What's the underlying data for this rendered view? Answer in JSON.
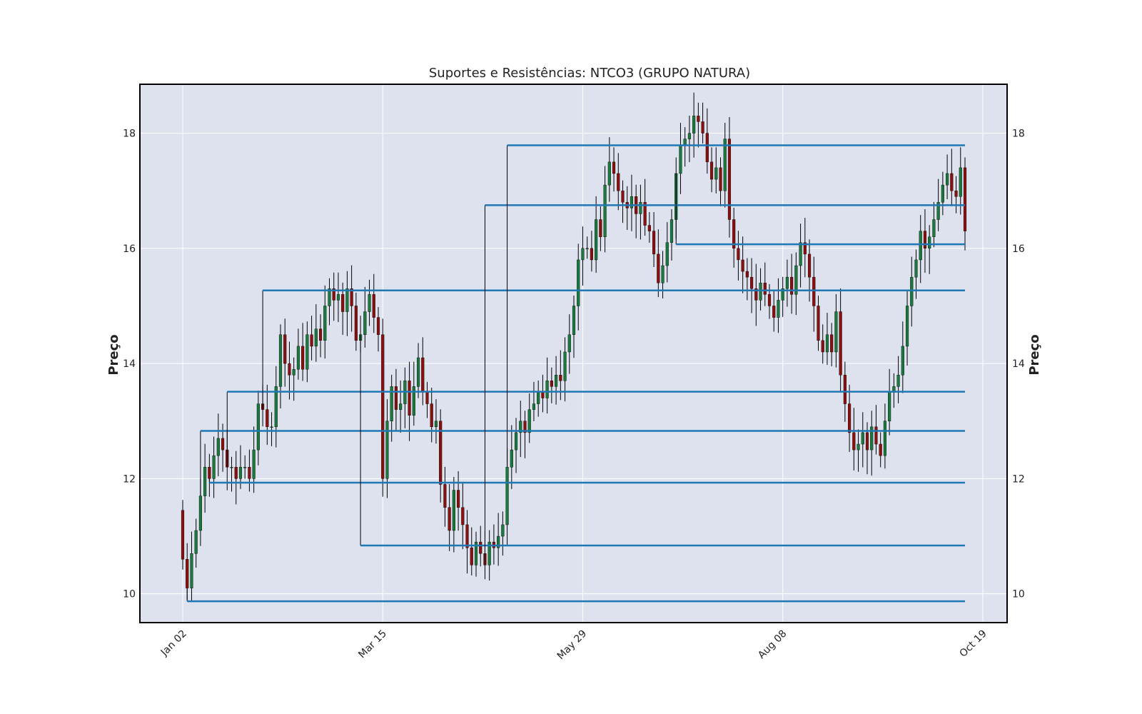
{
  "chart_data": {
    "type": "candlestick",
    "title": "Suportes e Resistências: NTCO3 (GRUPO NATURA)",
    "ylabel": "Preço",
    "ylabel_right": "Preço",
    "ylim": [
      9.5,
      18.85
    ],
    "yticks": [
      10,
      12,
      14,
      16,
      18
    ],
    "xticks": [
      "Jan 02",
      "Mar 15",
      "May 29",
      "Aug 08",
      "Oct 19"
    ],
    "grid": true,
    "colors": {
      "up": "#1a7a3e",
      "down": "#8b0f0f",
      "wick": "#000000",
      "level": "#1f77b4",
      "plot_bg": "#dde2ee"
    },
    "closes": [
      10.6,
      10.1,
      10.7,
      11.1,
      11.7,
      12.2,
      12.0,
      12.4,
      12.7,
      12.5,
      12.2,
      12.2,
      12.0,
      12.2,
      12.2,
      12.0,
      12.5,
      13.3,
      13.2,
      12.9,
      12.9,
      13.6,
      14.5,
      14.0,
      13.8,
      13.9,
      14.3,
      13.9,
      14.5,
      14.3,
      14.6,
      14.4,
      15.0,
      15.3,
      15.1,
      15.2,
      14.9,
      15.3,
      15.0,
      14.4,
      14.5,
      14.9,
      15.2,
      14.8,
      14.5,
      12.0,
      13.0,
      13.6,
      13.2,
      13.3,
      13.7,
      13.1,
      13.6,
      14.1,
      13.5,
      13.3,
      12.9,
      13.0,
      11.9,
      11.5,
      11.1,
      11.8,
      11.5,
      11.2,
      10.8,
      10.5,
      10.9,
      10.7,
      10.5,
      10.9,
      10.8,
      11.0,
      11.2,
      12.2,
      12.5,
      12.8,
      13.0,
      12.8,
      13.2,
      13.3,
      13.5,
      13.4,
      13.7,
      13.6,
      13.8,
      13.7,
      14.2,
      14.5,
      15.0,
      15.8,
      16.0,
      16.0,
      15.8,
      16.5,
      16.2,
      17.1,
      17.5,
      17.3,
      17.0,
      16.8,
      16.7,
      16.9,
      16.6,
      16.8,
      16.4,
      16.3,
      15.9,
      15.4,
      15.7,
      16.1,
      16.5,
      17.3,
      17.8,
      17.9,
      18.0,
      18.3,
      18.2,
      18.0,
      17.5,
      17.2,
      17.4,
      17.0,
      17.9,
      16.5,
      16.0,
      15.8,
      15.6,
      15.5,
      15.3,
      15.1,
      15.4,
      15.2,
      15.0,
      14.8,
      15.1,
      15.3,
      15.5,
      15.2,
      15.7,
      16.1,
      15.9,
      15.5,
      15.0,
      14.4,
      14.2,
      14.5,
      14.2,
      14.9,
      13.8,
      13.3,
      12.8,
      12.5,
      12.6,
      12.8,
      12.5,
      12.9,
      12.6,
      12.4,
      13.0,
      13.5,
      13.6,
      13.8,
      14.3,
      15.0,
      15.5,
      15.8,
      16.3,
      16.0,
      16.2,
      16.5,
      16.8,
      17.1,
      17.3,
      17.0,
      16.9,
      17.4,
      16.3
    ],
    "support_resistance": [
      {
        "start_index": 1,
        "level": 9.87
      },
      {
        "start_index": 4,
        "level": 12.83
      },
      {
        "start_index": 6,
        "level": 11.93
      },
      {
        "start_index": 10,
        "level": 13.51
      },
      {
        "start_index": 18,
        "level": 15.27
      },
      {
        "start_index": 40,
        "level": 10.84
      },
      {
        "start_index": 68,
        "level": 16.75
      },
      {
        "start_index": 73,
        "level": 17.79
      },
      {
        "start_index": 111,
        "level": 16.07
      }
    ]
  }
}
